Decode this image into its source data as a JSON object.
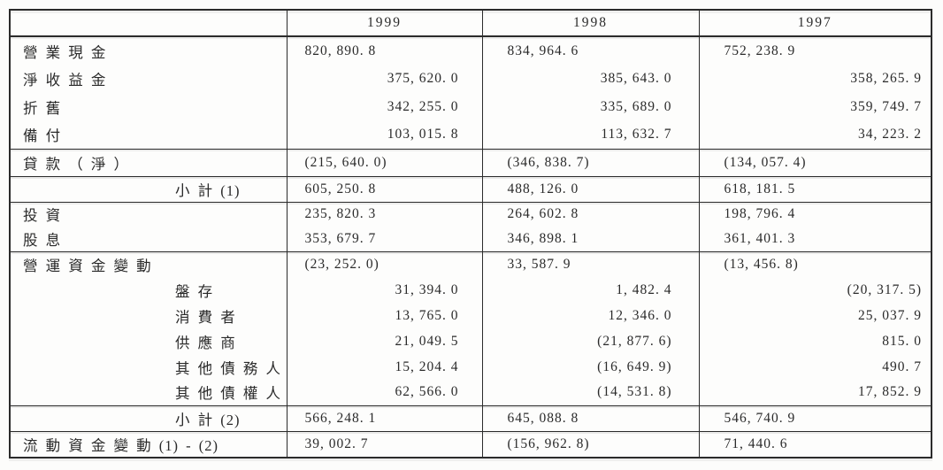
{
  "table": {
    "columns": [
      "",
      "1999",
      "1998",
      "1997"
    ],
    "rows": [
      {
        "label": "營 業 現 金",
        "indent": false,
        "align": "left",
        "sep": false,
        "values": [
          "820, 890. 8",
          "834, 964. 6",
          "752, 238. 9"
        ]
      },
      {
        "label": "淨 收 益 金",
        "indent": false,
        "align": "right",
        "sep": false,
        "values": [
          "375, 620. 0",
          "385, 643. 0",
          "358, 265. 9"
        ]
      },
      {
        "label": "折 舊",
        "indent": false,
        "align": "right",
        "sep": false,
        "values": [
          "342, 255. 0",
          "335, 689. 0",
          "359, 749. 7"
        ]
      },
      {
        "label": "備 付",
        "indent": false,
        "align": "right",
        "sep": false,
        "values": [
          "103, 015. 8",
          "113, 632. 7",
          "34, 223. 2"
        ]
      },
      {
        "label": "貸 款 （ 淨 ）",
        "indent": false,
        "align": "left",
        "sep": true,
        "values": [
          "(215, 640. 0)",
          "(346, 838. 7)",
          "(134, 057. 4)"
        ]
      },
      {
        "label": "小 計 (1)",
        "indent": true,
        "align": "left",
        "sep": true,
        "values": [
          "605, 250. 8",
          "488, 126. 0",
          "618, 181. 5"
        ]
      },
      {
        "label": "投 資",
        "indent": false,
        "align": "left",
        "sep": true,
        "values": [
          "235, 820. 3",
          "264, 602. 8",
          "198, 796. 4"
        ]
      },
      {
        "label": "股 息",
        "indent": false,
        "align": "left",
        "sep": false,
        "values": [
          "353, 679. 7",
          "346, 898. 1",
          "361, 401. 3"
        ]
      },
      {
        "label": "營 運 資 金 變 動",
        "indent": false,
        "align": "left",
        "sep": true,
        "values": [
          "(23, 252. 0)",
          "33, 587. 9",
          "(13, 456. 8)"
        ]
      },
      {
        "label": "盤 存",
        "indent": true,
        "align": "right",
        "sep": false,
        "values": [
          "31, 394. 0",
          "1, 482. 4",
          "(20, 317. 5)"
        ]
      },
      {
        "label": "消 費 者",
        "indent": true,
        "align": "right",
        "sep": false,
        "values": [
          "13, 765. 0",
          "12, 346. 0",
          "25, 037. 9"
        ]
      },
      {
        "label": "供 應 商",
        "indent": true,
        "align": "right",
        "sep": false,
        "values": [
          "21, 049. 5",
          "(21, 877. 6)",
          "815. 0"
        ]
      },
      {
        "label": "其 他 債 務 人",
        "indent": true,
        "align": "right",
        "sep": false,
        "values": [
          "15, 204. 4",
          "(16, 649. 9)",
          "490. 7"
        ]
      },
      {
        "label": "其 他 債 權 人",
        "indent": true,
        "align": "right",
        "sep": false,
        "values": [
          "62, 566. 0",
          "(14, 531. 8)",
          "17, 852. 9"
        ]
      },
      {
        "label": "小 計 (2)",
        "indent": true,
        "align": "left",
        "sep": true,
        "values": [
          "566, 248. 1",
          "645, 088. 8",
          "546, 740. 9"
        ]
      },
      {
        "label": "流 動 資 金 變 動 (1) - (2)",
        "indent": false,
        "align": "left",
        "sep": true,
        "values": [
          "39, 002. 7",
          "(156, 962. 8)",
          "71, 440. 6"
        ]
      }
    ]
  }
}
